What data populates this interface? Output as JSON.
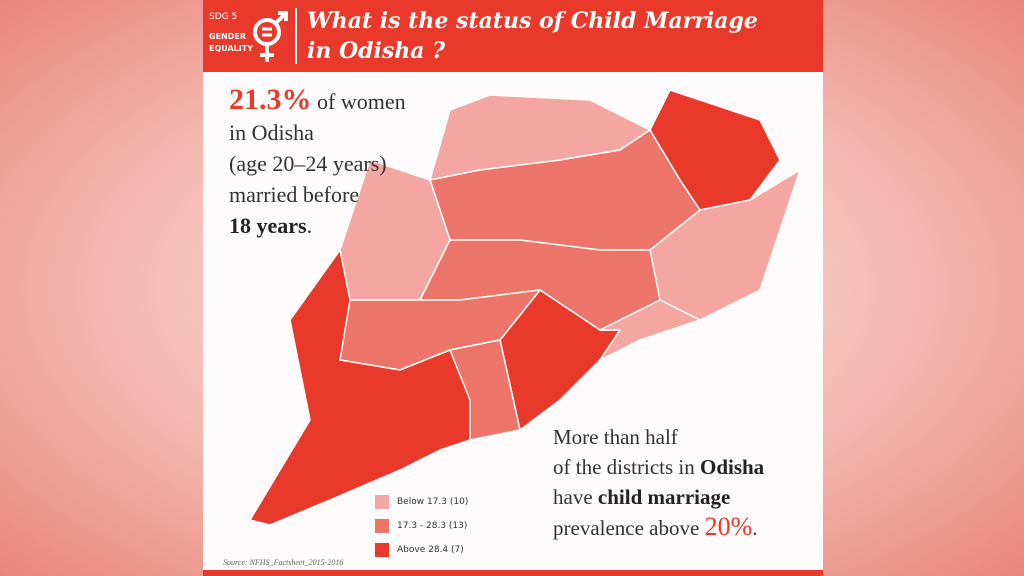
{
  "header": {
    "sdg_label": "SDG 5",
    "goal_line1": "GENDER",
    "goal_line2": "EQUALITY",
    "title_line1": "What is the status of Child Marriage",
    "title_line2": "in Odisha ?"
  },
  "stat": {
    "highlight": "21.3%",
    "line1_rest": "of women",
    "line2": "in Odisha",
    "line3": "(age 20–24 years)",
    "line4": "married before",
    "line5_bold": "18 years",
    "line5_rest": "."
  },
  "note": {
    "line1": "More than half",
    "line2_a": "of the districts in",
    "line2_b": "Odisha",
    "line3_a": "have",
    "line3_b": "child marriage",
    "line4_a": "prevalence above",
    "line4_b": "20%",
    "line4_c": "."
  },
  "legend": {
    "items": [
      {
        "label": "Below 17.3 (10)",
        "color": "#f4a6a0"
      },
      {
        "label": "17.3 - 28.3 (13)",
        "color": "#ec7468"
      },
      {
        "label": "Above 28.4 (7)",
        "color": "#e8392b"
      }
    ]
  },
  "source": "Source: NFHS_Factsheet_2015-2016"
}
